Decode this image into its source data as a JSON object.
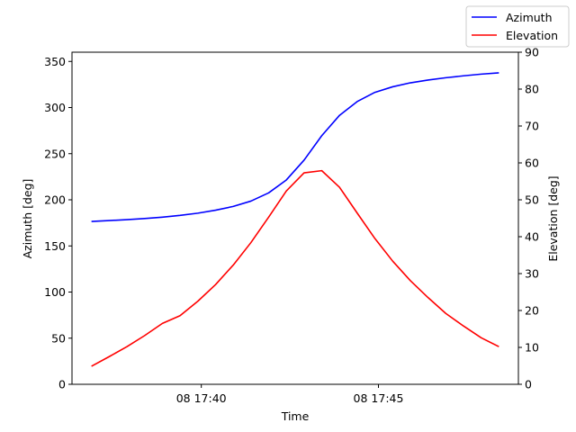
{
  "chart_data": {
    "type": "line",
    "xlabel": "Time",
    "ylabel_left": "Azimuth [deg]",
    "ylabel_right": "Elevation [deg]",
    "x_ticks": [
      "08 17:40",
      "08 17:45"
    ],
    "x_tick_minutes": [
      40,
      45
    ],
    "xlim": [
      36.35,
      48.95
    ],
    "y_left_lim": [
      0,
      360
    ],
    "y_left_ticks": [
      0,
      50,
      100,
      150,
      200,
      250,
      300,
      350
    ],
    "y_right_lim": [
      0,
      90
    ],
    "y_right_ticks": [
      0,
      10,
      20,
      30,
      40,
      50,
      60,
      70,
      80,
      90
    ],
    "grid": false,
    "legend_placement": "top-right, outside axes",
    "x": [
      36.9,
      37.4,
      37.9,
      38.4,
      38.9,
      39.4,
      39.9,
      40.4,
      40.9,
      41.4,
      41.9,
      42.4,
      42.9,
      43.4,
      43.9,
      44.4,
      44.9,
      45.4,
      45.9,
      46.4,
      46.9,
      47.4,
      47.9,
      48.4
    ],
    "series": [
      {
        "name": "Azimuth",
        "axis": "left",
        "color": "#0000ff",
        "values": [
          176.5,
          177.5,
          178.5,
          179.7,
          181.2,
          183.1,
          185.5,
          188.7,
          192.8,
          198.6,
          207.5,
          221.5,
          243.0,
          269.5,
          291.5,
          306.5,
          316.5,
          322.5,
          326.8,
          329.8,
          332.3,
          334.4,
          336.2,
          337.6
        ]
      },
      {
        "name": "Elevation",
        "axis": "right",
        "color": "#ff0000",
        "values": [
          4.9,
          7.5,
          10.2,
          13.2,
          16.5,
          18.6,
          22.5,
          27.0,
          32.3,
          38.4,
          45.3,
          52.4,
          57.3,
          57.9,
          53.4,
          46.4,
          39.5,
          33.4,
          28.1,
          23.5,
          19.2,
          15.8,
          12.6,
          10.2
        ]
      }
    ]
  }
}
